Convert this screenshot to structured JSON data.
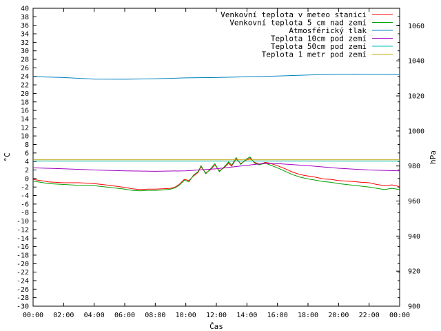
{
  "chart_data": {
    "type": "line",
    "xlabel": "Čas",
    "ylabel_left": "°C",
    "ylabel_right": "hPa",
    "ylim_left": [
      -30,
      40
    ],
    "ylim_right": [
      900,
      1070
    ],
    "xlim_hours": [
      0,
      24
    ],
    "x_tick_labels": [
      "00:00",
      "02:00",
      "04:00",
      "06:00",
      "08:00",
      "10:00",
      "12:00",
      "14:00",
      "16:00",
      "18:00",
      "20:00",
      "22:00",
      "00:00"
    ],
    "y_left_tick_step": 2,
    "y_right_tick_step": 20,
    "grid": false,
    "legend_position": "top-right",
    "series": [
      {
        "name": "Venkovní teplota v meteo stanici",
        "color": "#ff0000",
        "axis": "left",
        "x": [
          0,
          0.5,
          1,
          2,
          3,
          4,
          5,
          6,
          6.5,
          7,
          7.5,
          8,
          8.5,
          9,
          9.3,
          9.6,
          9.9,
          10.2,
          10.5,
          10.8,
          11,
          11.3,
          11.6,
          11.9,
          12.2,
          12.5,
          12.8,
          13,
          13.3,
          13.6,
          13.9,
          14.2,
          14.5,
          14.8,
          15,
          15.2,
          15.5,
          16,
          16.5,
          17,
          17.5,
          18,
          18.5,
          19,
          19.5,
          20,
          20.5,
          21,
          21.5,
          22,
          22.5,
          23,
          23.5,
          24
        ],
        "y": [
          -0.2,
          -0.5,
          -0.8,
          -1.0,
          -1.0,
          -1.2,
          -1.6,
          -2.1,
          -2.4,
          -2.6,
          -2.5,
          -2.5,
          -2.4,
          -2.3,
          -2.0,
          -1.3,
          -0.2,
          -0.5,
          0.6,
          1.4,
          2.8,
          1.3,
          2.0,
          3.2,
          1.8,
          2.5,
          3.6,
          2.9,
          4.6,
          3.5,
          4.2,
          4.8,
          3.8,
          3.4,
          3.5,
          3.8,
          3.6,
          3.0,
          2.3,
          1.5,
          0.9,
          0.6,
          0.3,
          -0.1,
          -0.2,
          -0.5,
          -0.6,
          -0.7,
          -0.9,
          -1.0,
          -1.4,
          -1.7,
          -1.5,
          -1.9
        ]
      },
      {
        "name": "Venkovní teplota 5 cm nad zemí",
        "color": "#00a000",
        "axis": "left",
        "x": [
          0,
          0.5,
          1,
          2,
          3,
          4,
          5,
          6,
          6.5,
          7,
          7.5,
          8,
          8.5,
          9,
          9.3,
          9.6,
          9.9,
          10.2,
          10.5,
          10.8,
          11,
          11.3,
          11.6,
          11.9,
          12.2,
          12.5,
          12.8,
          13,
          13.3,
          13.6,
          13.9,
          14.2,
          14.5,
          14.8,
          15,
          15.2,
          15.5,
          16,
          16.5,
          17,
          17.5,
          18,
          18.5,
          19,
          19.5,
          20,
          20.5,
          21,
          21.5,
          22,
          22.5,
          23,
          23.5,
          24
        ],
        "y": [
          -0.6,
          -0.9,
          -1.2,
          -1.4,
          -1.6,
          -1.7,
          -2.1,
          -2.5,
          -2.8,
          -2.9,
          -2.8,
          -2.8,
          -2.7,
          -2.5,
          -2.2,
          -1.5,
          -0.4,
          -0.8,
          0.8,
          1.6,
          3.0,
          1.1,
          2.2,
          3.5,
          1.6,
          2.7,
          3.9,
          3.1,
          4.9,
          3.3,
          4.4,
          5.1,
          3.6,
          3.2,
          3.4,
          3.6,
          3.2,
          2.5,
          1.7,
          0.9,
          0.3,
          -0.1,
          -0.4,
          -0.7,
          -0.9,
          -1.2,
          -1.4,
          -1.6,
          -1.8,
          -2.0,
          -2.3,
          -2.6,
          -2.3,
          -2.6
        ]
      },
      {
        "name": "Atmosférický tlak",
        "color": "#0080c0",
        "axis": "right",
        "x": [
          0,
          2,
          4,
          6,
          8,
          10,
          12,
          14,
          16,
          18,
          20,
          21,
          22,
          24
        ],
        "y": [
          1031,
          1030.5,
          1029.6,
          1029.5,
          1029.8,
          1030.3,
          1030.5,
          1030.9,
          1031.3,
          1031.9,
          1032.3,
          1032.4,
          1032.3,
          1032.2
        ]
      },
      {
        "name": "Teplota 10cm pod zemí",
        "color": "#a000c0",
        "axis": "left",
        "x": [
          0,
          2,
          4,
          6,
          8,
          10,
          12,
          14,
          15,
          16,
          18,
          20,
          22,
          24
        ],
        "y": [
          2.5,
          2.3,
          2.0,
          1.8,
          1.7,
          1.8,
          2.3,
          3.1,
          3.5,
          3.5,
          3.0,
          2.4,
          2.0,
          1.8
        ]
      },
      {
        "name": "Teplota 50cm pod zemí",
        "color": "#00c0c0",
        "axis": "left",
        "x": [
          0,
          24
        ],
        "y": [
          4.1,
          4.1
        ]
      },
      {
        "name": "Teplota 1 metr pod zemí",
        "color": "#c0a000",
        "axis": "left",
        "x": [
          0,
          24
        ],
        "y": [
          4.4,
          4.4
        ]
      }
    ]
  }
}
